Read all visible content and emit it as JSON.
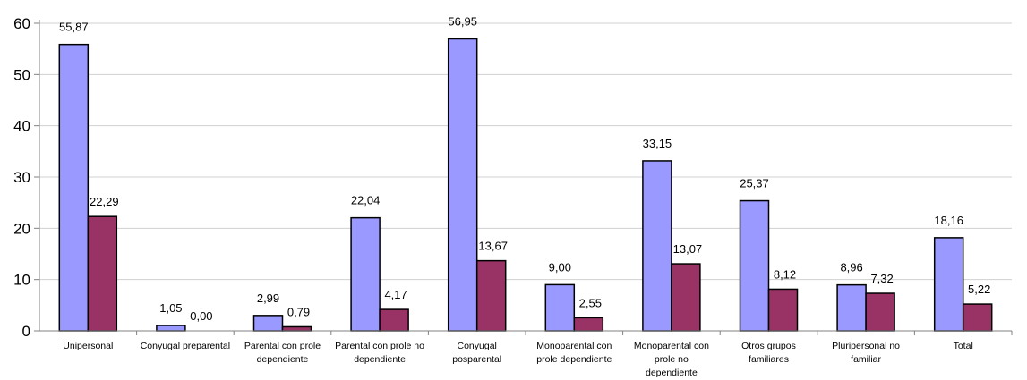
{
  "chart_data": {
    "type": "bar",
    "categories": [
      [
        "Unipersonal"
      ],
      [
        "Conyugal preparental"
      ],
      [
        "Parental con prole",
        "dependiente"
      ],
      [
        "Parental con prole no",
        "dependiente"
      ],
      [
        "Conyugal",
        "posparental"
      ],
      [
        "Monoparental con",
        "prole dependiente"
      ],
      [
        "Monoparental con",
        "prole no",
        "dependiente"
      ],
      [
        "Otros grupos",
        "familiares"
      ],
      [
        "Pluripersonal no",
        "familiar"
      ],
      [
        "Total"
      ]
    ],
    "series": [
      {
        "color": "#9999ff",
        "values": [
          55.87,
          1.05,
          2.99,
          22.04,
          56.95,
          9.0,
          33.15,
          25.37,
          8.96,
          18.16
        ],
        "labels": [
          "55,87",
          "1,05",
          "2,99",
          "22,04",
          "56,95",
          "9,00",
          "33,15",
          "25,37",
          "8,96",
          "18,16"
        ]
      },
      {
        "color": "#993366",
        "values": [
          22.29,
          0.0,
          0.79,
          4.17,
          13.67,
          2.55,
          13.07,
          8.12,
          7.32,
          5.22
        ],
        "labels": [
          "22,29",
          "0,00",
          "0,79",
          "4,17",
          "13,67",
          "2,55",
          "13,07",
          "8,12",
          "7,32",
          "5,22"
        ]
      }
    ],
    "ylim": [
      0,
      60
    ],
    "yticks": [
      "0",
      "10",
      "20",
      "30",
      "40",
      "50",
      "60"
    ],
    "grid": true,
    "legend": "none"
  }
}
